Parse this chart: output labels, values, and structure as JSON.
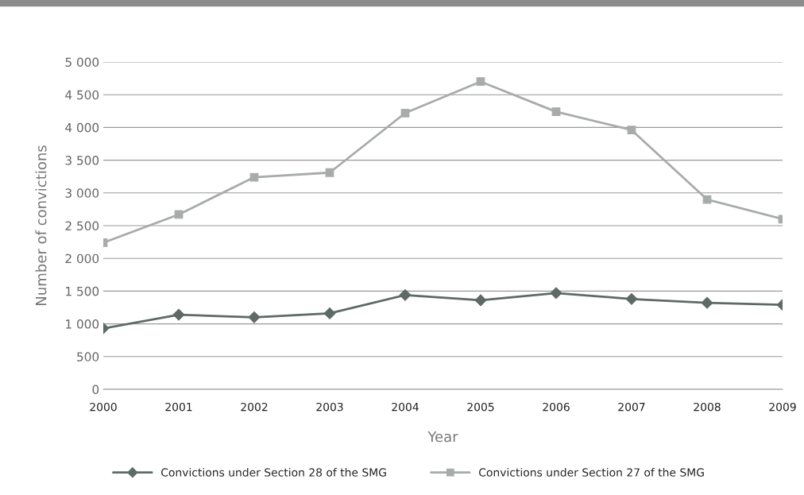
{
  "chart_data": {
    "type": "line",
    "xlabel": "Year",
    "ylabel": "Number of convictions",
    "categories": [
      "2000",
      "2001",
      "2002",
      "2003",
      "2004",
      "2005",
      "2006",
      "2007",
      "2008",
      "2009"
    ],
    "series": [
      {
        "name": "Convictions under Section 28 of the SMG",
        "color": "#5e6a65",
        "marker": "diamond",
        "values": [
          930,
          1140,
          1100,
          1160,
          1440,
          1360,
          1470,
          1380,
          1320,
          1290
        ]
      },
      {
        "name": "Convictions under Section 27 of the SMG",
        "color": "#a7abaa",
        "marker": "square",
        "values": [
          2240,
          2670,
          3240,
          3310,
          4220,
          4700,
          4240,
          3960,
          2900,
          2600
        ]
      }
    ],
    "ylim": [
      0,
      5000
    ],
    "yticks": [
      0,
      {
        "value": 500,
        "label": "500"
      },
      {
        "value": 1000,
        "label": "1 000"
      },
      {
        "value": 1500,
        "label": "1 500"
      },
      {
        "value": 2000,
        "label": "2 000"
      },
      {
        "value": 2500,
        "label": "2 500"
      },
      {
        "value": 3000,
        "label": "3 000"
      },
      {
        "value": 3500,
        "label": "3 500"
      },
      {
        "value": 4000,
        "label": "4 000"
      },
      {
        "value": 4500,
        "label": "4 500"
      },
      {
        "value": 5000,
        "label": "5 000"
      }
    ],
    "grid": "y",
    "legend": "bottom",
    "line_style": "solid"
  }
}
